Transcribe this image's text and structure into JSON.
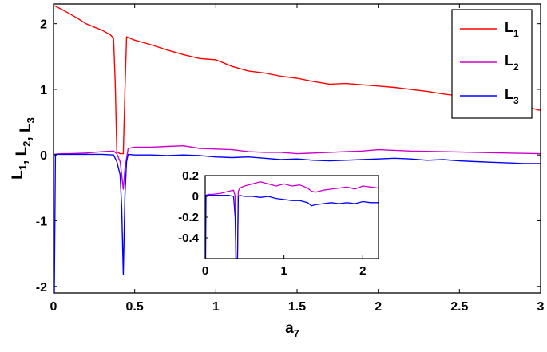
{
  "chart_data": [
    {
      "type": "line",
      "title": "",
      "xlabel": {
        "base": "a",
        "sub": "7"
      },
      "ylabel": [
        {
          "base": "L",
          "sub": "1"
        },
        {
          "base": ", L",
          "sub": "2"
        },
        {
          "base": ", L",
          "sub": "3"
        }
      ],
      "xlim": [
        0,
        3
      ],
      "ylim": [
        -2.1,
        2.3
      ],
      "xticks": [
        0,
        0.5,
        1,
        1.5,
        2,
        2.5,
        3
      ],
      "xtick_labels": [
        "0",
        "0.5",
        "1",
        "1.5",
        "2",
        "2.5",
        "3"
      ],
      "yticks": [
        -2,
        -1,
        0,
        1,
        2
      ],
      "ytick_labels": [
        "-2",
        "-1",
        "0",
        "1",
        "2"
      ],
      "grid": false,
      "legend_position": "top-right",
      "series": [
        {
          "name": "L1",
          "label_base": "L",
          "label_sub": "1",
          "color": "#ff0000",
          "x": [
            0,
            0.05,
            0.1,
            0.15,
            0.2,
            0.25,
            0.3,
            0.35,
            0.37,
            0.38,
            0.39,
            0.41,
            0.43,
            0.44,
            0.45,
            0.5,
            0.6,
            0.7,
            0.8,
            0.9,
            1.0,
            1.1,
            1.2,
            1.3,
            1.4,
            1.5,
            1.6,
            1.7,
            1.8,
            1.9,
            2.0,
            2.1,
            2.2,
            2.3,
            2.4,
            2.5,
            2.6,
            2.7,
            2.8,
            2.9,
            3.0
          ],
          "y": [
            2.28,
            2.22,
            2.15,
            2.08,
            2.0,
            1.95,
            1.9,
            1.83,
            1.78,
            1.1,
            0.05,
            0.02,
            0.02,
            1.0,
            1.8,
            1.75,
            1.68,
            1.6,
            1.53,
            1.47,
            1.45,
            1.35,
            1.28,
            1.25,
            1.2,
            1.17,
            1.12,
            1.08,
            1.09,
            1.07,
            1.05,
            1.03,
            1.0,
            0.97,
            0.93,
            0.9,
            0.88,
            0.84,
            0.78,
            0.74,
            0.68
          ]
        },
        {
          "name": "L2",
          "label_base": "L",
          "label_sub": "2",
          "color": "#cc00cc",
          "x": [
            0,
            0.05,
            0.1,
            0.2,
            0.3,
            0.37,
            0.39,
            0.41,
            0.42,
            0.43,
            0.44,
            0.46,
            0.5,
            0.6,
            0.7,
            0.8,
            0.9,
            1.0,
            1.1,
            1.2,
            1.3,
            1.4,
            1.5,
            1.6,
            1.7,
            1.8,
            1.9,
            2.0,
            2.2,
            2.4,
            2.6,
            2.8,
            3.0
          ],
          "y": [
            0.01,
            0.02,
            0.02,
            0.03,
            0.05,
            0.06,
            0.02,
            -0.1,
            -0.3,
            -0.52,
            -0.2,
            0.1,
            0.12,
            0.12,
            0.13,
            0.14,
            0.1,
            0.09,
            0.08,
            0.05,
            0.04,
            0.04,
            0.02,
            0.03,
            0.04,
            0.05,
            0.06,
            0.08,
            0.06,
            0.05,
            0.04,
            0.03,
            0.02
          ]
        },
        {
          "name": "L3",
          "label_base": "L",
          "label_sub": "3",
          "color": "#0000ff",
          "x": [
            0,
            0.005,
            0.012,
            0.02,
            0.05,
            0.1,
            0.2,
            0.3,
            0.37,
            0.39,
            0.41,
            0.42,
            0.43,
            0.44,
            0.45,
            0.46,
            0.5,
            0.6,
            0.7,
            0.8,
            0.9,
            1.0,
            1.1,
            1.2,
            1.3,
            1.4,
            1.5,
            1.6,
            1.7,
            1.8,
            1.9,
            2.0,
            2.1,
            2.2,
            2.3,
            2.4,
            2.5,
            2.6,
            2.7,
            2.8,
            2.9,
            3.0
          ],
          "y": [
            -2.0,
            -2.1,
            0.01,
            0.01,
            0.01,
            0.01,
            0.01,
            0.01,
            0.0,
            -0.1,
            -0.3,
            -0.8,
            -1.82,
            -0.6,
            -0.1,
            0.01,
            0.0,
            0.0,
            -0.01,
            0.0,
            -0.01,
            -0.03,
            -0.04,
            -0.03,
            -0.05,
            -0.07,
            -0.06,
            -0.08,
            -0.09,
            -0.08,
            -0.07,
            -0.06,
            -0.05,
            -0.06,
            -0.08,
            -0.07,
            -0.09,
            -0.1,
            -0.11,
            -0.12,
            -0.13,
            -0.13
          ]
        }
      ]
    },
    {
      "type": "line",
      "title": "",
      "inset": true,
      "xlim": [
        0,
        2.2
      ],
      "ylim": [
        -0.6,
        0.2
      ],
      "xticks": [
        0,
        1,
        2
      ],
      "xtick_labels": [
        "0",
        "1",
        "2"
      ],
      "yticks": [
        0.2,
        0,
        -0.2,
        -0.4
      ],
      "ytick_labels": [
        "0.2",
        "0",
        "-0.2",
        "-0.4"
      ],
      "series": [
        {
          "color": "#cc00cc",
          "x": [
            0,
            0.05,
            0.1,
            0.2,
            0.3,
            0.36,
            0.38,
            0.39,
            0.41,
            0.42,
            0.44,
            0.5,
            0.6,
            0.7,
            0.8,
            0.9,
            1.0,
            1.1,
            1.2,
            1.3,
            1.35,
            1.4,
            1.5,
            1.6,
            1.7,
            1.8,
            1.9,
            2.0,
            2.1,
            2.2
          ],
          "y": [
            0.01,
            0.02,
            0.02,
            0.03,
            0.05,
            0.06,
            0.0,
            -0.6,
            -0.6,
            0.05,
            0.08,
            0.1,
            0.12,
            0.14,
            0.12,
            0.1,
            0.12,
            0.1,
            0.11,
            0.08,
            0.05,
            0.04,
            0.06,
            0.07,
            0.08,
            0.09,
            0.07,
            0.1,
            0.09,
            0.08
          ]
        },
        {
          "color": "#0000ff",
          "x": [
            0,
            0.005,
            0.01,
            0.02,
            0.05,
            0.1,
            0.2,
            0.3,
            0.36,
            0.38,
            0.39,
            0.41,
            0.42,
            0.44,
            0.5,
            0.6,
            0.7,
            0.8,
            0.9,
            1.0,
            1.1,
            1.2,
            1.3,
            1.35,
            1.4,
            1.5,
            1.6,
            1.7,
            1.8,
            1.9,
            2.0,
            2.1,
            2.2
          ],
          "y": [
            -0.6,
            -0.6,
            0.01,
            0.01,
            0.01,
            0.01,
            0.01,
            0.01,
            0.0,
            -0.2,
            -0.6,
            -0.6,
            0.0,
            0.01,
            0.0,
            0.0,
            -0.01,
            0.0,
            -0.02,
            -0.03,
            -0.04,
            -0.04,
            -0.06,
            -0.09,
            -0.08,
            -0.07,
            -0.06,
            -0.07,
            -0.06,
            -0.07,
            -0.05,
            -0.06,
            -0.06
          ]
        }
      ]
    }
  ]
}
